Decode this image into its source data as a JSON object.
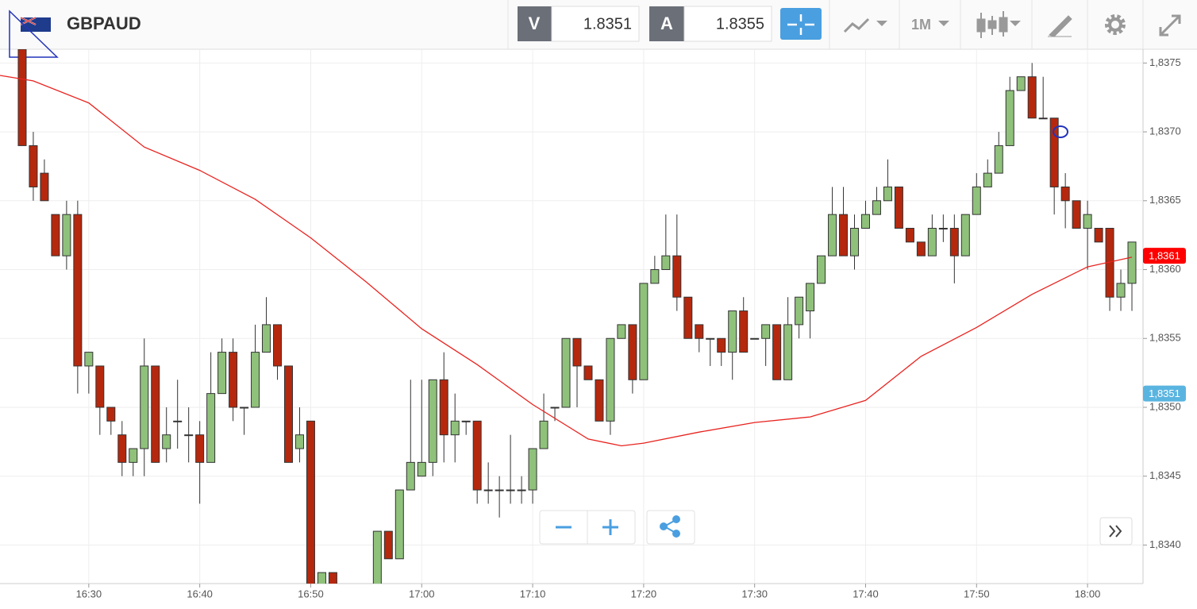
{
  "toolbar": {
    "symbol": "GBPAUD",
    "bid_label": "V",
    "bid": "1.8351",
    "ask_label": "A",
    "ask": "1.8355",
    "timeframe": "1M"
  },
  "chart_data": {
    "type": "candlestick",
    "up_color": "#8fc17b",
    "down_color": "#b5280e",
    "outline_color": "#333333",
    "grid": true,
    "xlim": [
      "16:22",
      "18:05"
    ],
    "ylim": [
      1.83372,
      1.8376
    ],
    "xticks": [
      "16:30",
      "16:40",
      "16:50",
      "17:00",
      "17:10",
      "17:20",
      "17:30",
      "17:40",
      "17:50",
      "18:00"
    ],
    "yticks": [
      {
        "value": 1.834,
        "label": "1,8340"
      },
      {
        "value": 1.8345,
        "label": "1,8345"
      },
      {
        "value": 1.835,
        "label": "1,8350"
      },
      {
        "value": 1.8355,
        "label": "1,8355"
      },
      {
        "value": 1.836,
        "label": "1,8360"
      },
      {
        "value": 1.8365,
        "label": "1,8365"
      },
      {
        "value": 1.837,
        "label": "1,8370"
      },
      {
        "value": 1.8375,
        "label": "1,8375"
      }
    ],
    "x": [
      "16:24",
      "16:25",
      "16:26",
      "16:27",
      "16:28",
      "16:29",
      "16:30",
      "16:31",
      "16:32",
      "16:33",
      "16:34",
      "16:35",
      "16:36",
      "16:37",
      "16:38",
      "16:39",
      "16:40",
      "16:41",
      "16:42",
      "16:43",
      "16:44",
      "16:45",
      "16:46",
      "16:47",
      "16:48",
      "16:49",
      "16:50",
      "16:51",
      "16:52",
      "16:56",
      "16:57",
      "16:58",
      "16:59",
      "17:00",
      "17:01",
      "17:02",
      "17:03",
      "17:04",
      "17:05",
      "17:06",
      "17:07",
      "17:08",
      "17:09",
      "17:10",
      "17:11",
      "17:12",
      "17:13",
      "17:14",
      "17:15",
      "17:16",
      "17:17",
      "17:18",
      "17:19",
      "17:20",
      "17:21",
      "17:22",
      "17:23",
      "17:24",
      "17:25",
      "17:26",
      "17:27",
      "17:28",
      "17:29",
      "17:30",
      "17:31",
      "17:32",
      "17:33",
      "17:34",
      "17:35",
      "17:36",
      "17:37",
      "17:38",
      "17:39",
      "17:40",
      "17:41",
      "17:42",
      "17:43",
      "17:44",
      "17:45",
      "17:46",
      "17:47",
      "17:48",
      "17:49",
      "17:50",
      "17:51",
      "17:52",
      "17:53",
      "17:54",
      "17:55",
      "17:56",
      "17:57",
      "17:58",
      "17:59",
      "18:00",
      "18:01",
      "18:02",
      "18:03",
      "18:04"
    ],
    "open": [
      1.8376,
      1.8369,
      1.8367,
      1.8364,
      1.8361,
      1.8364,
      1.8353,
      1.8353,
      1.835,
      1.8348,
      1.8346,
      1.8347,
      1.8353,
      1.8347,
      1.8349,
      1.8348,
      1.8348,
      1.8346,
      1.8351,
      1.8354,
      1.835,
      1.835,
      1.8354,
      1.8356,
      1.8353,
      1.8347,
      1.8349,
      1.8336,
      1.8338,
      1.8336,
      1.8341,
      1.8339,
      1.8344,
      1.8345,
      1.8346,
      1.8352,
      1.8348,
      1.8349,
      1.8349,
      1.8344,
      1.8344,
      1.8344,
      1.8344,
      1.8344,
      1.8347,
      1.835,
      1.835,
      1.8355,
      1.8353,
      1.8352,
      1.8349,
      1.8355,
      1.8356,
      1.8352,
      1.8359,
      1.836,
      1.8361,
      1.8358,
      1.8356,
      1.8355,
      1.8355,
      1.8354,
      1.8357,
      1.8355,
      1.8355,
      1.8356,
      1.8352,
      1.8356,
      1.8357,
      1.8359,
      1.8361,
      1.8364,
      1.8361,
      1.8363,
      1.8364,
      1.8365,
      1.8366,
      1.8363,
      1.8362,
      1.8361,
      1.8363,
      1.8363,
      1.8361,
      1.8364,
      1.8366,
      1.8367,
      1.8369,
      1.8373,
      1.8374,
      1.8371,
      1.8371,
      1.8366,
      1.8365,
      1.8363,
      1.8363,
      1.8363,
      1.8358,
      1.8359
    ],
    "high": [
      1.8376,
      1.837,
      1.8368,
      1.8364,
      1.8365,
      1.8365,
      1.8354,
      1.8353,
      1.835,
      1.8349,
      1.8347,
      1.8355,
      1.8353,
      1.835,
      1.8352,
      1.835,
      1.8349,
      1.8354,
      1.8355,
      1.8355,
      1.835,
      1.8356,
      1.8358,
      1.8356,
      1.8353,
      1.835,
      1.8349,
      1.8338,
      1.8338,
      1.8341,
      1.8341,
      1.8344,
      1.8352,
      1.8352,
      1.8352,
      1.8354,
      1.8351,
      1.8349,
      1.8349,
      1.8346,
      1.8345,
      1.8348,
      1.8345,
      1.8347,
      1.8351,
      1.835,
      1.8355,
      1.8355,
      1.8353,
      1.8352,
      1.8355,
      1.8356,
      1.8356,
      1.8359,
      1.8361,
      1.8364,
      1.8364,
      1.8358,
      1.8356,
      1.8355,
      1.8355,
      1.8357,
      1.8358,
      1.8355,
      1.8356,
      1.8356,
      1.8358,
      1.8358,
      1.8359,
      1.8361,
      1.8366,
      1.8366,
      1.8364,
      1.8365,
      1.8366,
      1.8368,
      1.8366,
      1.8363,
      1.8362,
      1.8364,
      1.8364,
      1.8364,
      1.8364,
      1.8367,
      1.8368,
      1.837,
      1.8374,
      1.8374,
      1.8375,
      1.8374,
      1.8371,
      1.8367,
      1.8365,
      1.8365,
      1.8363,
      1.8363,
      1.836,
      1.8362
    ],
    "low": [
      1.8369,
      1.8365,
      1.8365,
      1.8361,
      1.836,
      1.8351,
      1.8351,
      1.8348,
      1.8348,
      1.8345,
      1.8345,
      1.8345,
      1.8346,
      1.8346,
      1.8347,
      1.8346,
      1.8343,
      1.8346,
      1.8351,
      1.8349,
      1.8348,
      1.835,
      1.8354,
      1.8352,
      1.8346,
      1.8346,
      1.8336,
      1.8336,
      1.8336,
      1.8336,
      1.8339,
      1.8339,
      1.8344,
      1.8345,
      1.8345,
      1.8346,
      1.8346,
      1.8348,
      1.8343,
      1.8343,
      1.8342,
      1.8343,
      1.8343,
      1.8343,
      1.8347,
      1.8349,
      1.835,
      1.835,
      1.8352,
      1.8349,
      1.8348,
      1.8355,
      1.8351,
      1.8352,
      1.8359,
      1.836,
      1.8357,
      1.8355,
      1.8354,
      1.8353,
      1.8353,
      1.8352,
      1.8354,
      1.8355,
      1.8353,
      1.8352,
      1.8352,
      1.8355,
      1.8355,
      1.8359,
      1.8361,
      1.8361,
      1.836,
      1.8363,
      1.8364,
      1.8365,
      1.8363,
      1.8362,
      1.8361,
      1.8361,
      1.8362,
      1.8359,
      1.8361,
      1.8364,
      1.8366,
      1.8367,
      1.8369,
      1.8373,
      1.8371,
      1.8371,
      1.8364,
      1.8363,
      1.8363,
      1.836,
      1.8362,
      1.8357,
      1.8357,
      1.8357
    ],
    "close": [
      1.8369,
      1.8366,
      1.8365,
      1.8361,
      1.8364,
      1.8353,
      1.8354,
      1.835,
      1.8349,
      1.8346,
      1.8347,
      1.8353,
      1.8346,
      1.8348,
      1.8349,
      1.8348,
      1.8346,
      1.8351,
      1.8354,
      1.835,
      1.835,
      1.8354,
      1.8356,
      1.8353,
      1.8346,
      1.8348,
      1.8337,
      1.8338,
      1.8337,
      1.8341,
      1.8339,
      1.8344,
      1.8346,
      1.8346,
      1.8352,
      1.8348,
      1.8349,
      1.8349,
      1.8344,
      1.8344,
      1.8344,
      1.8344,
      1.8344,
      1.8347,
      1.8349,
      1.835,
      1.8355,
      1.8353,
      1.8352,
      1.8349,
      1.8355,
      1.8356,
      1.8352,
      1.8359,
      1.836,
      1.8361,
      1.8358,
      1.8355,
      1.8355,
      1.8355,
      1.8354,
      1.8357,
      1.8354,
      1.8355,
      1.8356,
      1.8352,
      1.8356,
      1.8358,
      1.8359,
      1.8361,
      1.8364,
      1.8361,
      1.8363,
      1.8364,
      1.8365,
      1.8366,
      1.8363,
      1.8362,
      1.8361,
      1.8363,
      1.8363,
      1.8361,
      1.8364,
      1.8366,
      1.8367,
      1.8369,
      1.8373,
      1.8374,
      1.8371,
      1.8371,
      1.8366,
      1.8365,
      1.8363,
      1.8364,
      1.8362,
      1.8358,
      1.8359,
      1.8362
    ],
    "moving_average": {
      "color": "#e8231f",
      "x": [
        "16:22",
        "16:25",
        "16:30",
        "16:35",
        "16:40",
        "16:45",
        "16:50",
        "16:55",
        "17:00",
        "17:05",
        "17:10",
        "17:15",
        "17:18",
        "17:20",
        "17:25",
        "17:30",
        "17:35",
        "17:40",
        "17:45",
        "17:50",
        "17:55",
        "18:00",
        "18:04"
      ],
      "values": [
        1.83741,
        1.83737,
        1.83721,
        1.83689,
        1.83672,
        1.83651,
        1.83623,
        1.83591,
        1.83557,
        1.83531,
        1.83502,
        1.83477,
        1.83472,
        1.83474,
        1.83482,
        1.83489,
        1.83493,
        1.83505,
        1.83537,
        1.83558,
        1.83582,
        1.83602,
        1.83609
      ]
    },
    "price_tags": [
      {
        "value": 1.8361,
        "label": "1,8361",
        "color": "#ff0000"
      },
      {
        "value": 1.8351,
        "label": "1,8351",
        "color": "#5ab4e0"
      }
    ]
  }
}
